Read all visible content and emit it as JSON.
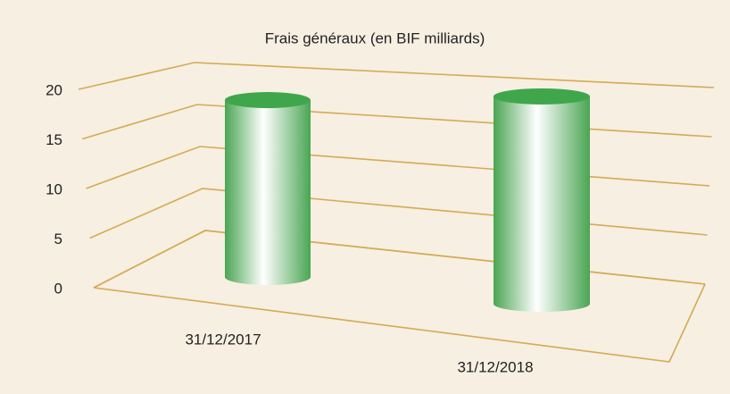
{
  "chart_data": {
    "type": "bar",
    "title": "Frais généraux (en BIF milliards)",
    "categories": [
      "31/12/2017",
      "31/12/2018"
    ],
    "values": [
      18.5,
      19.5
    ],
    "color": "#3fa64c",
    "ylim": [
      0,
      20
    ],
    "yticks": [
      0,
      5,
      10,
      15,
      20
    ],
    "grid": true
  }
}
